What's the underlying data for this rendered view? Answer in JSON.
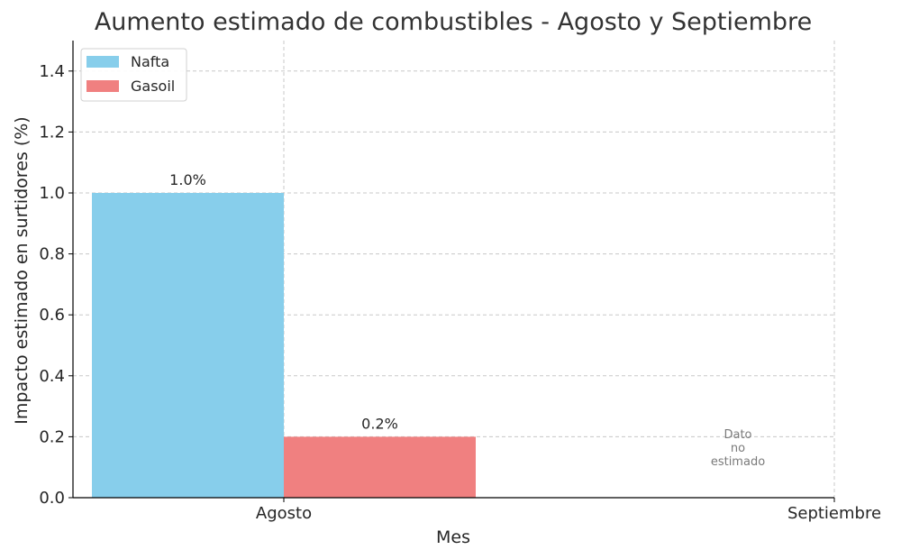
{
  "chart_data": {
    "type": "bar",
    "title": "Aumento estimado de combustibles - Agosto y Septiembre",
    "xlabel": "Mes",
    "ylabel": "Impacto estimado en surtidores (%)",
    "categories": [
      "Agosto",
      "Septiembre"
    ],
    "series": [
      {
        "name": "Nafta",
        "color": "#87CEEB",
        "values": [
          1.0,
          null
        ],
        "labels": [
          "1.0%",
          null
        ]
      },
      {
        "name": "Gasoil",
        "color": "#F08080",
        "values": [
          0.2,
          null
        ],
        "labels": [
          "0.2%",
          null
        ]
      }
    ],
    "ylim": [
      0,
      1.5
    ],
    "yticks": [
      0.0,
      0.2,
      0.4,
      0.6,
      0.8,
      1.0,
      1.2,
      1.4
    ],
    "ytick_labels": [
      "0.0",
      "0.2",
      "0.4",
      "0.6",
      "0.8",
      "1.0",
      "1.2",
      "1.4"
    ],
    "grid": true,
    "legend_position": "top-left",
    "annotations": [
      {
        "category": "Septiembre",
        "lines": [
          "Dato",
          "no",
          "estimado"
        ]
      }
    ]
  }
}
